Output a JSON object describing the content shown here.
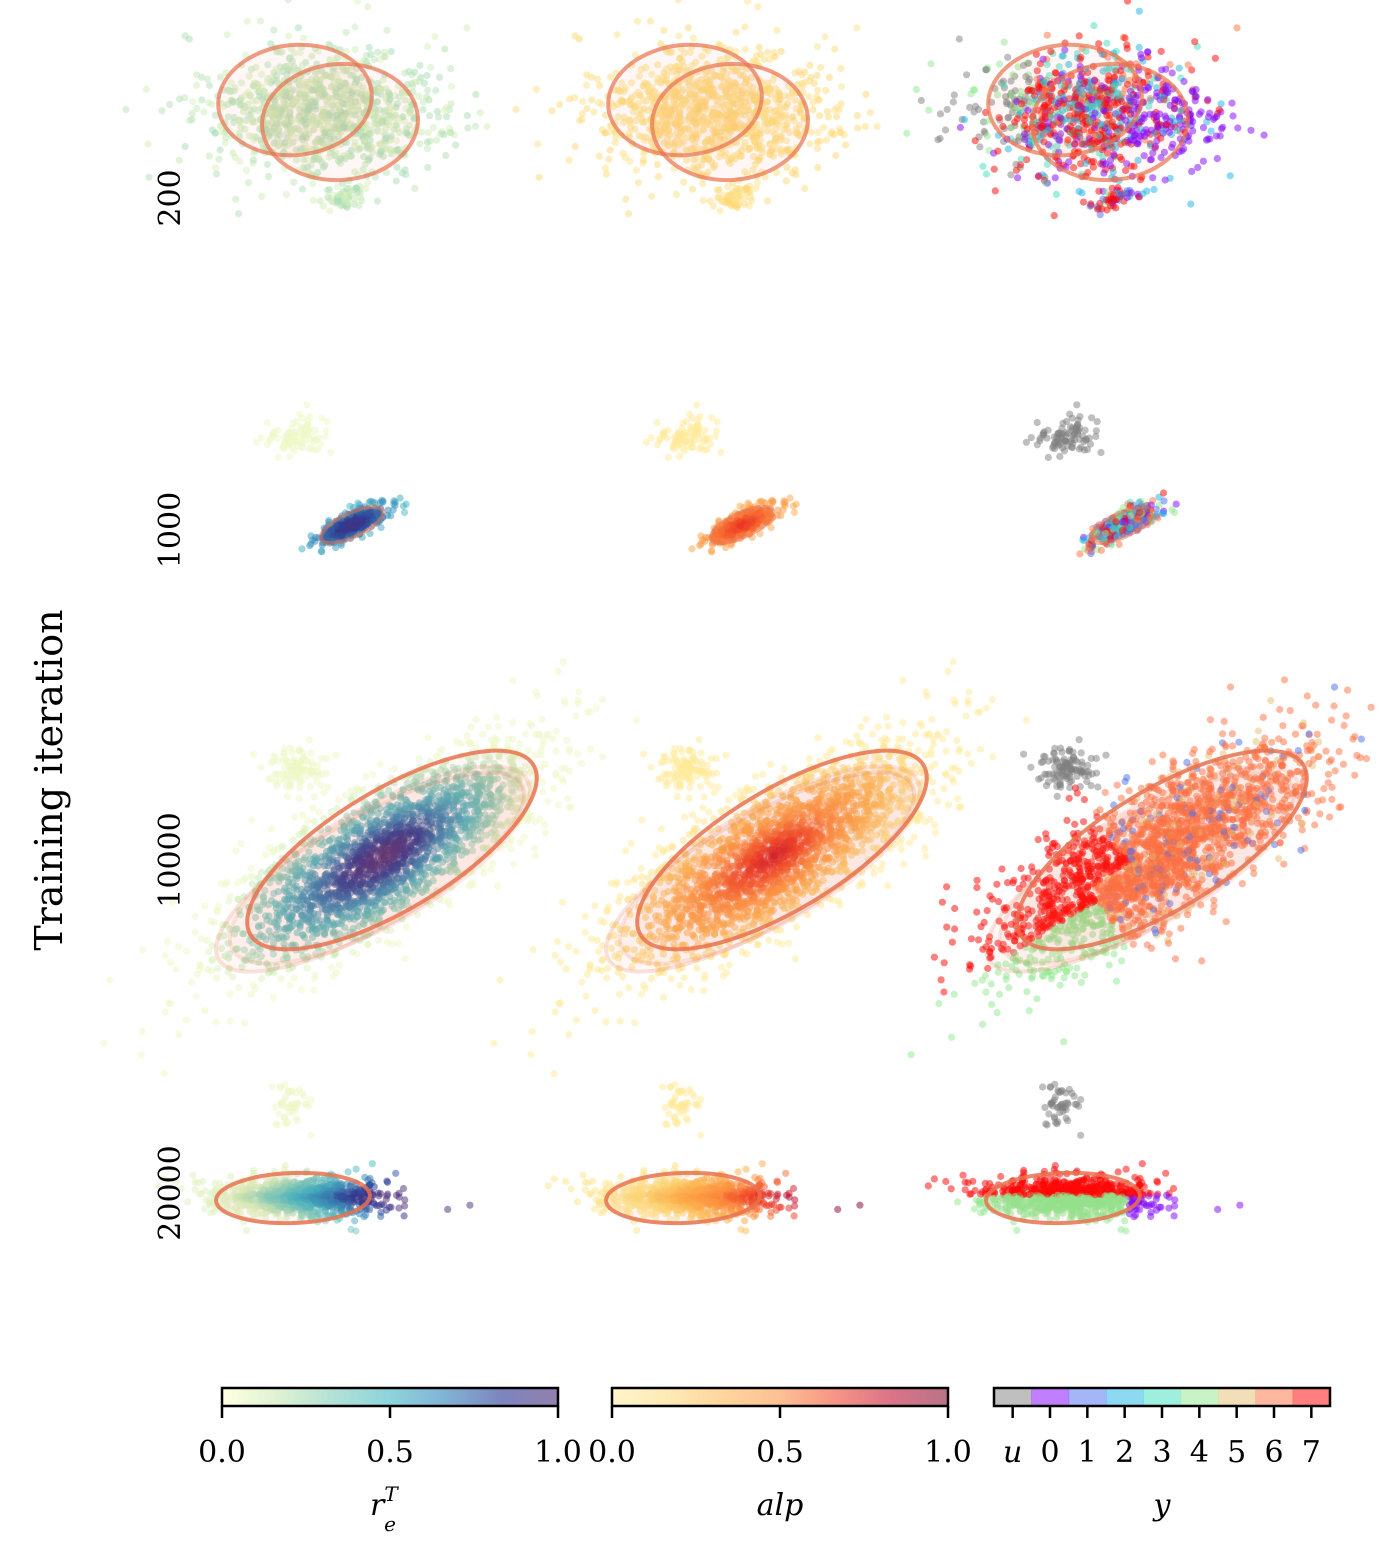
{
  "chart_data": {
    "type": "scatter",
    "ylabel": "Training iteration",
    "rows": [
      "200",
      "1000",
      "10000",
      "20000"
    ],
    "columns": [
      {
        "colorbar_label": "r_e^T",
        "colorbar_label_main": "r",
        "colorbar_label_sub": "e",
        "colorbar_label_sup": "T",
        "colormap": "YlGnBu",
        "range": [
          0.0,
          1.0
        ],
        "ticks": [
          "0.0",
          "0.5",
          "1.0"
        ],
        "stops": [
          "#ffffcc",
          "#c7e9b4",
          "#7fcdbb",
          "#41b6c4",
          "#2c7fb8",
          "#253494",
          "#4a2b7a"
        ]
      },
      {
        "colorbar_label": "alp",
        "colormap": "YlOrRd",
        "range": [
          0.0,
          1.0
        ],
        "ticks": [
          "0.0",
          "0.5",
          "1.0"
        ],
        "stops": [
          "#ffeda0",
          "#fed976",
          "#feb24c",
          "#fd8d3c",
          "#f03b20",
          "#bd0026",
          "#800026"
        ]
      },
      {
        "colorbar_label": "y",
        "colormap": "categorical",
        "ticks": [
          "u",
          "0",
          "1",
          "2",
          "3",
          "4",
          "5",
          "6",
          "7"
        ],
        "category_colors": [
          "#808080",
          "#8000ff",
          "#4a6ef0",
          "#1eb4e6",
          "#40e0c0",
          "#90e890",
          "#e6c070",
          "#ff7040",
          "#ff0000"
        ]
      }
    ],
    "ellipse_color": "#e8724f",
    "grid": false,
    "axes_visible": false
  }
}
